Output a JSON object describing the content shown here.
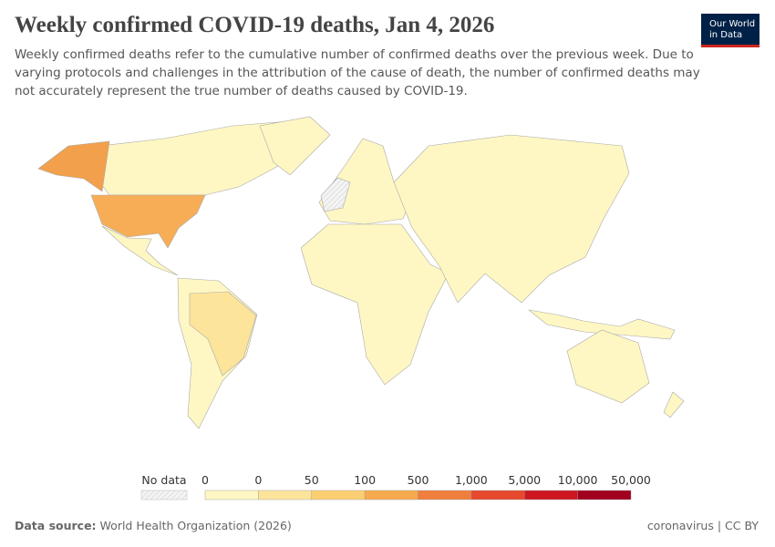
{
  "header": {
    "title": "Weekly confirmed COVID-19 deaths, Jan 4, 2026",
    "subtitle": [
      "Weekly confirmed deaths refer to the cumulative number of confirmed deaths over the previous week. Due to",
      "varying protocols and challenges in the attribution of the cause of death, the number of confirmed deaths may",
      "not accurately represent the true number of deaths caused by COVID-19."
    ],
    "logo": [
      "Our World",
      "in Data"
    ]
  },
  "legend": {
    "no_data": "No data",
    "ticks": [
      "0",
      "0",
      "50",
      "100",
      "500",
      "1,000",
      "5,000",
      "10,000",
      "50,000"
    ],
    "colors": [
      "#fef7c3",
      "#fde49b",
      "#fbce72",
      "#f7a94f",
      "#f07f3d",
      "#e6492d",
      "#cc1720",
      "#a1001f"
    ]
  },
  "footer": {
    "source_label": "Data source:",
    "source": "World Health Organization (2026)",
    "right": "coronavirus | CC BY"
  }
}
